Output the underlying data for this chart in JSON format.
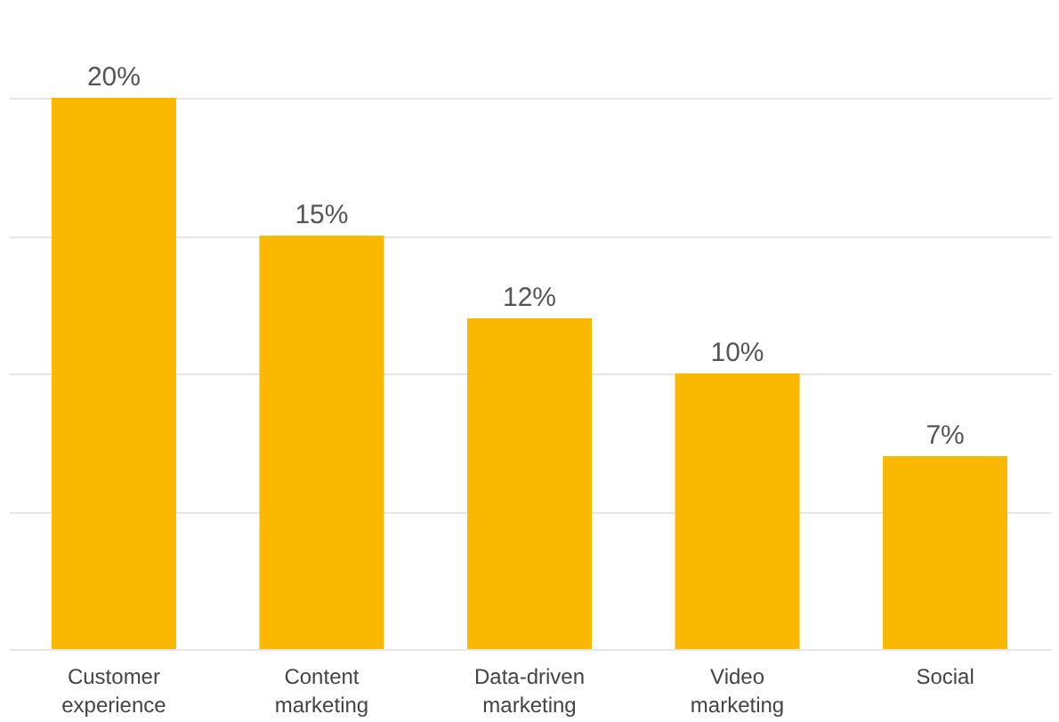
{
  "chart_data": {
    "type": "bar",
    "categories": [
      "Customer experience",
      "Content marketing",
      "Data-driven marketing",
      "Video marketing",
      "Social"
    ],
    "values": [
      20,
      15,
      12,
      10,
      7
    ],
    "color": "#fbb800",
    "value_labels": [
      "20%",
      "15%",
      "12%",
      "10%",
      "7%"
    ],
    "ylim": [
      0,
      20
    ],
    "yticks": [
      {
        "value": 0,
        "label": null
      },
      {
        "value": 5,
        "label": null
      },
      {
        "value": 10,
        "label": null
      },
      {
        "value": 15,
        "label": null
      },
      {
        "value": 20,
        "label": null
      }
    ],
    "grid": "y",
    "tick_labels": "x"
  }
}
